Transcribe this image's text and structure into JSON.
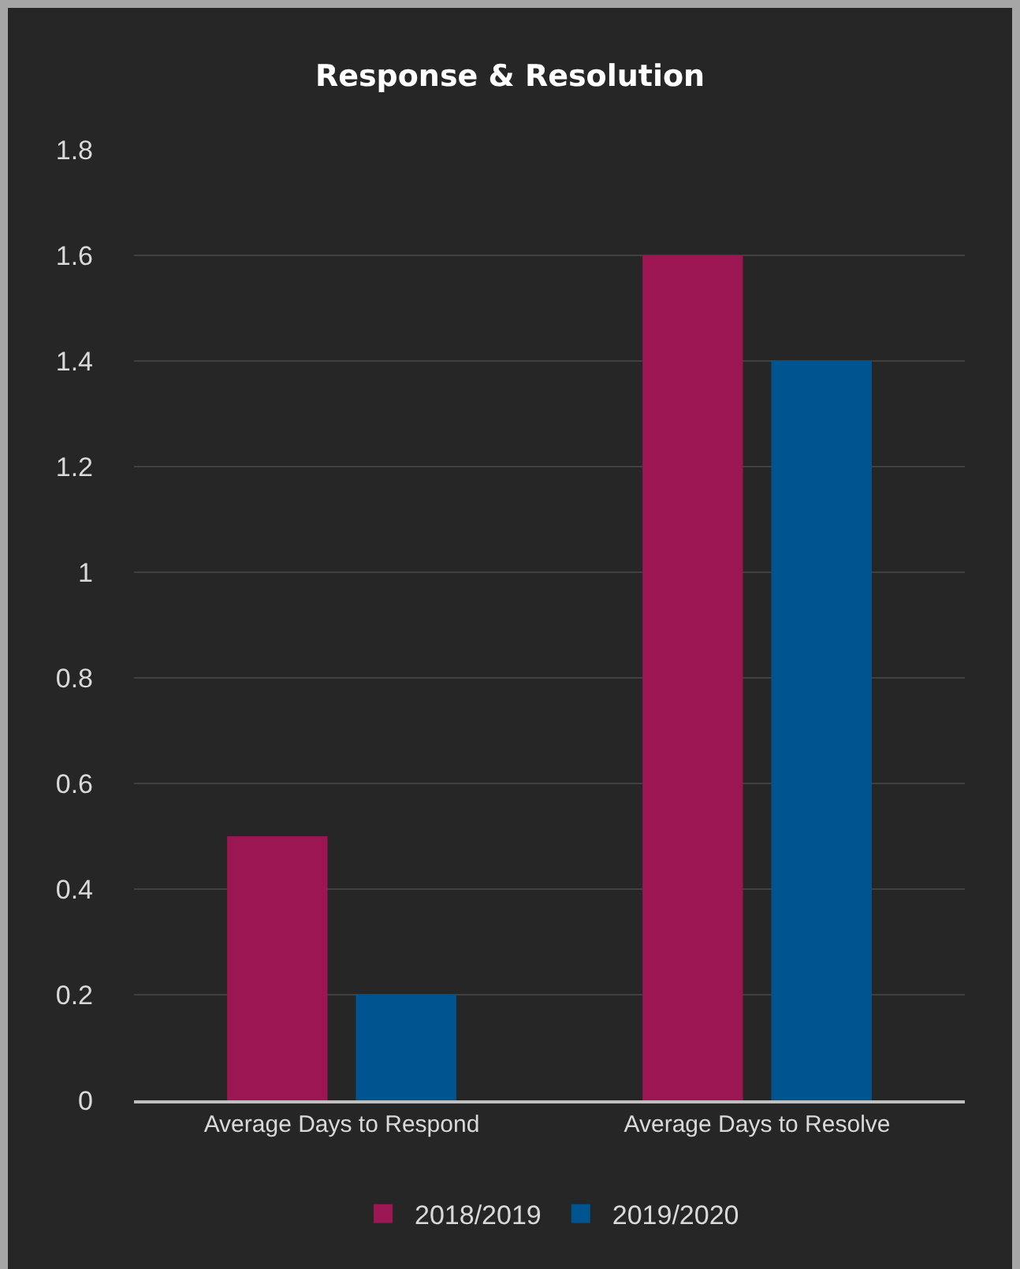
{
  "chart_data": {
    "type": "bar",
    "title": "Response & Resolution",
    "categories": [
      "Average Days to Respond",
      "Average Days to Resolve"
    ],
    "series": [
      {
        "name": "2018/2019",
        "color": "#9b1652",
        "values": [
          0.5,
          1.6
        ]
      },
      {
        "name": "2019/2020",
        "color": "#00548f",
        "values": [
          0.2,
          1.4
        ]
      }
    ],
    "ylim": [
      0,
      1.8
    ],
    "yticks": [
      0,
      0.2,
      0.4,
      0.6,
      0.8,
      1,
      1.2,
      1.4,
      1.6,
      1.8
    ],
    "grid": "y",
    "legend": "bottom"
  }
}
